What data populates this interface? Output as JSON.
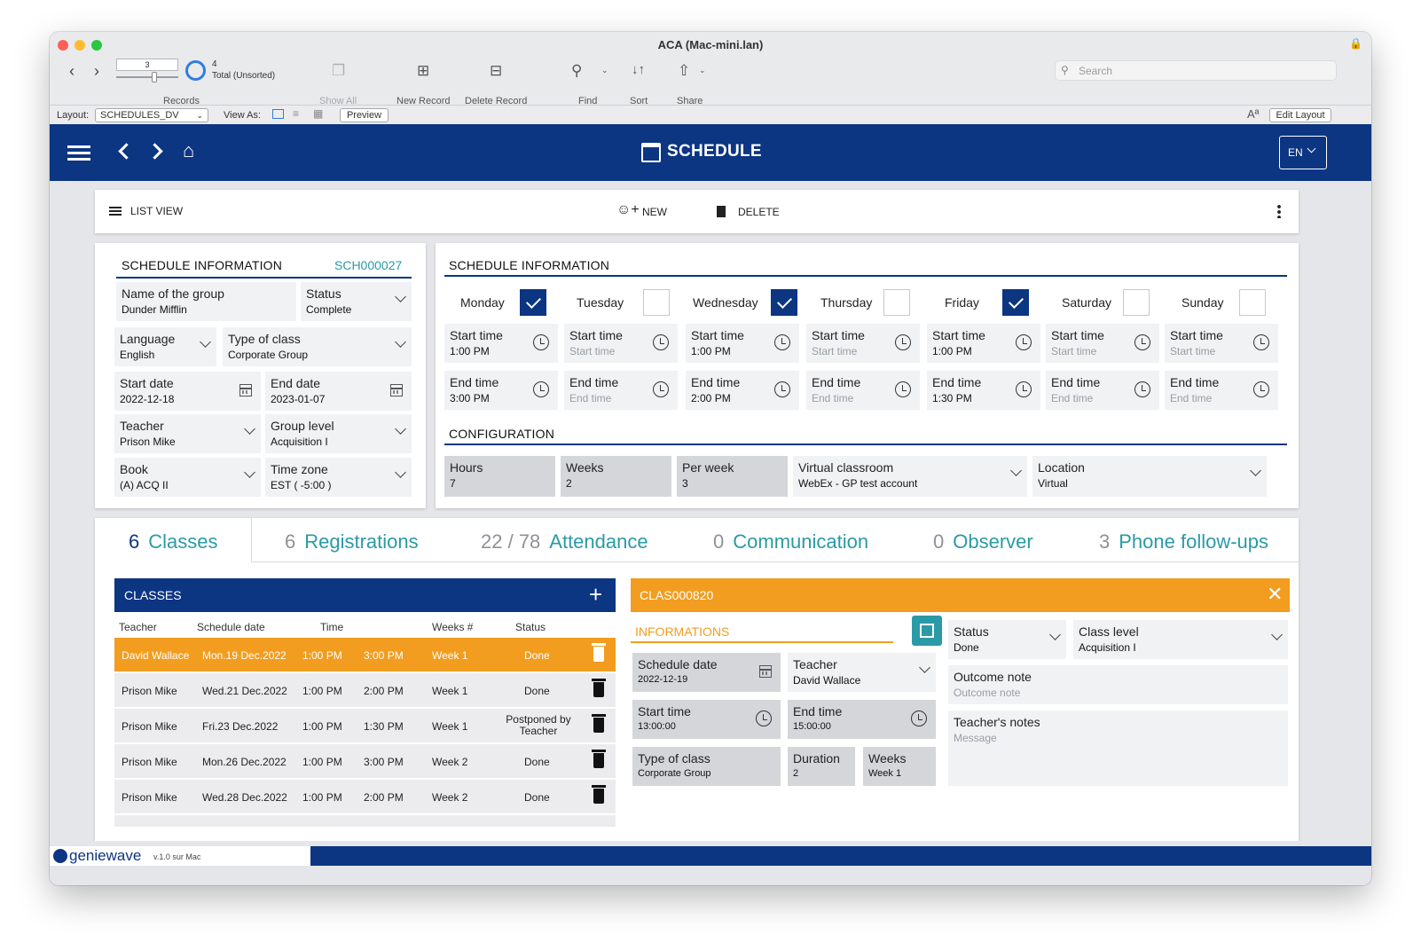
{
  "window": {
    "title": "ACA (Mac-mini.lan)"
  },
  "toolbar": {
    "record_current": "3",
    "record_count": "4",
    "record_status": "Total (Unsorted)",
    "records_label": "Records",
    "show_all": "Show All",
    "new_record": "New Record",
    "delete_record": "Delete Record",
    "find": "Find",
    "sort": "Sort",
    "share": "Share",
    "search_placeholder": "Search"
  },
  "layoutbar": {
    "layout_label": "Layout:",
    "layout_value": "SCHEDULES_DV",
    "view_as": "View As:",
    "preview": "Preview",
    "edit_layout": "Edit Layout",
    "aa": "Aª"
  },
  "header": {
    "title": "SCHEDULE",
    "lang": "EN"
  },
  "actionbar": {
    "list_view": "LIST VIEW",
    "new": "NEW",
    "delete": "DELETE"
  },
  "schedule_info": {
    "title": "SCHEDULE INFORMATION",
    "id": "SCH000027",
    "fields": {
      "group": {
        "label": "Name of the group",
        "value": "Dunder Mifflin"
      },
      "status": {
        "label": "Status",
        "value": "Complete"
      },
      "language": {
        "label": "Language",
        "value": "English"
      },
      "type": {
        "label": "Type of class",
        "value": "Corporate Group"
      },
      "start": {
        "label": "Start date",
        "value": "2022-12-18"
      },
      "end": {
        "label": "End date",
        "value": "2023-01-07"
      },
      "teacher": {
        "label": "Teacher",
        "value": "Prison Mike"
      },
      "level": {
        "label": "Group level",
        "value": "Acquisition I"
      },
      "book": {
        "label": "Book",
        "value": "(A) ACQ II"
      },
      "tz": {
        "label": "Time zone",
        "value": "EST ( -5:00 )"
      }
    }
  },
  "weekly": {
    "title": "SCHEDULE INFORMATION",
    "start_label": "Start time",
    "end_label": "End time",
    "days": [
      {
        "name": "Monday",
        "checked": true,
        "start": "1:00 PM",
        "end": "3:00 PM"
      },
      {
        "name": "Tuesday",
        "checked": false,
        "start": "Start time",
        "end": "End time"
      },
      {
        "name": "Wednesday",
        "checked": true,
        "start": "1:00 PM",
        "end": "2:00 PM"
      },
      {
        "name": "Thursday",
        "checked": false,
        "start": "Start time",
        "end": "End time"
      },
      {
        "name": "Friday",
        "checked": true,
        "start": "1:00 PM",
        "end": "1:30 PM"
      },
      {
        "name": "Saturday",
        "checked": false,
        "start": "Start time",
        "end": "End time"
      },
      {
        "name": "Sunday",
        "checked": false,
        "start": "Start time",
        "end": "End time"
      }
    ]
  },
  "config": {
    "title": "CONFIGURATION",
    "hours": {
      "label": "Hours",
      "value": "7"
    },
    "weeks": {
      "label": "Weeks",
      "value": "2"
    },
    "per_week": {
      "label": "Per week",
      "value": "3"
    },
    "virtual": {
      "label": "Virtual classroom",
      "value": "WebEx - GP test account"
    },
    "location": {
      "label": "Location",
      "value": "Virtual"
    }
  },
  "tabs": [
    {
      "count": "6",
      "label": "Classes"
    },
    {
      "count": "6",
      "label": "Registrations"
    },
    {
      "count": "22 / 78",
      "label": "Attendance"
    },
    {
      "count": "0",
      "label": "Communication"
    },
    {
      "count": "0",
      "label": "Observer"
    },
    {
      "count": "3",
      "label": "Phone follow-ups"
    }
  ],
  "classes": {
    "title": "CLASSES",
    "columns": [
      "Teacher",
      "Schedule date",
      "Time",
      "Weeks #",
      "Status"
    ],
    "rows": [
      {
        "teacher": "David Wallace",
        "date": "Mon.19 Dec.2022",
        "start": "1:00 PM",
        "end": "3:00 PM",
        "week": "Week 1",
        "status": "Done"
      },
      {
        "teacher": "Prison Mike",
        "date": "Wed.21 Dec.2022",
        "start": "1:00 PM",
        "end": "2:00 PM",
        "week": "Week 1",
        "status": "Done"
      },
      {
        "teacher": "Prison Mike",
        "date": "Fri.23 Dec.2022",
        "start": "1:00 PM",
        "end": "1:30 PM",
        "week": "Week 1",
        "status": "Postponed by Teacher"
      },
      {
        "teacher": "Prison Mike",
        "date": "Mon.26 Dec.2022",
        "start": "1:00 PM",
        "end": "3:00 PM",
        "week": "Week 2",
        "status": "Done"
      },
      {
        "teacher": "Prison Mike",
        "date": "Wed.28 Dec.2022",
        "start": "1:00 PM",
        "end": "2:00 PM",
        "week": "Week 2",
        "status": "Done"
      }
    ]
  },
  "detail": {
    "id": "CLAS000820",
    "section": "INFORMATIONS",
    "schedule_date": {
      "label": "Schedule date",
      "value": "2022-12-19"
    },
    "teacher": {
      "label": "Teacher",
      "value": "David Wallace"
    },
    "start_time": {
      "label": "Start time",
      "value": "13:00:00"
    },
    "end_time": {
      "label": "End time",
      "value": "15:00:00"
    },
    "type": {
      "label": "Type of class",
      "value": "Corporate Group"
    },
    "duration": {
      "label": "Duration",
      "value": "2"
    },
    "weeks": {
      "label": "Weeks",
      "value": "Week 1"
    },
    "status": {
      "label": "Status",
      "value": "Done"
    },
    "class_level": {
      "label": "Class level",
      "value": "Acquisition I"
    },
    "outcome": {
      "label": "Outcome note",
      "placeholder": "Outcome note"
    },
    "notes": {
      "label": "Teacher's notes",
      "placeholder": "Message"
    }
  },
  "footer": {
    "brand": "geniewave",
    "version": "v.1.0 sur Mac"
  },
  "colors": {
    "navy": "#0c3582",
    "orange": "#f29d1f",
    "teal": "#2a9aa6"
  }
}
